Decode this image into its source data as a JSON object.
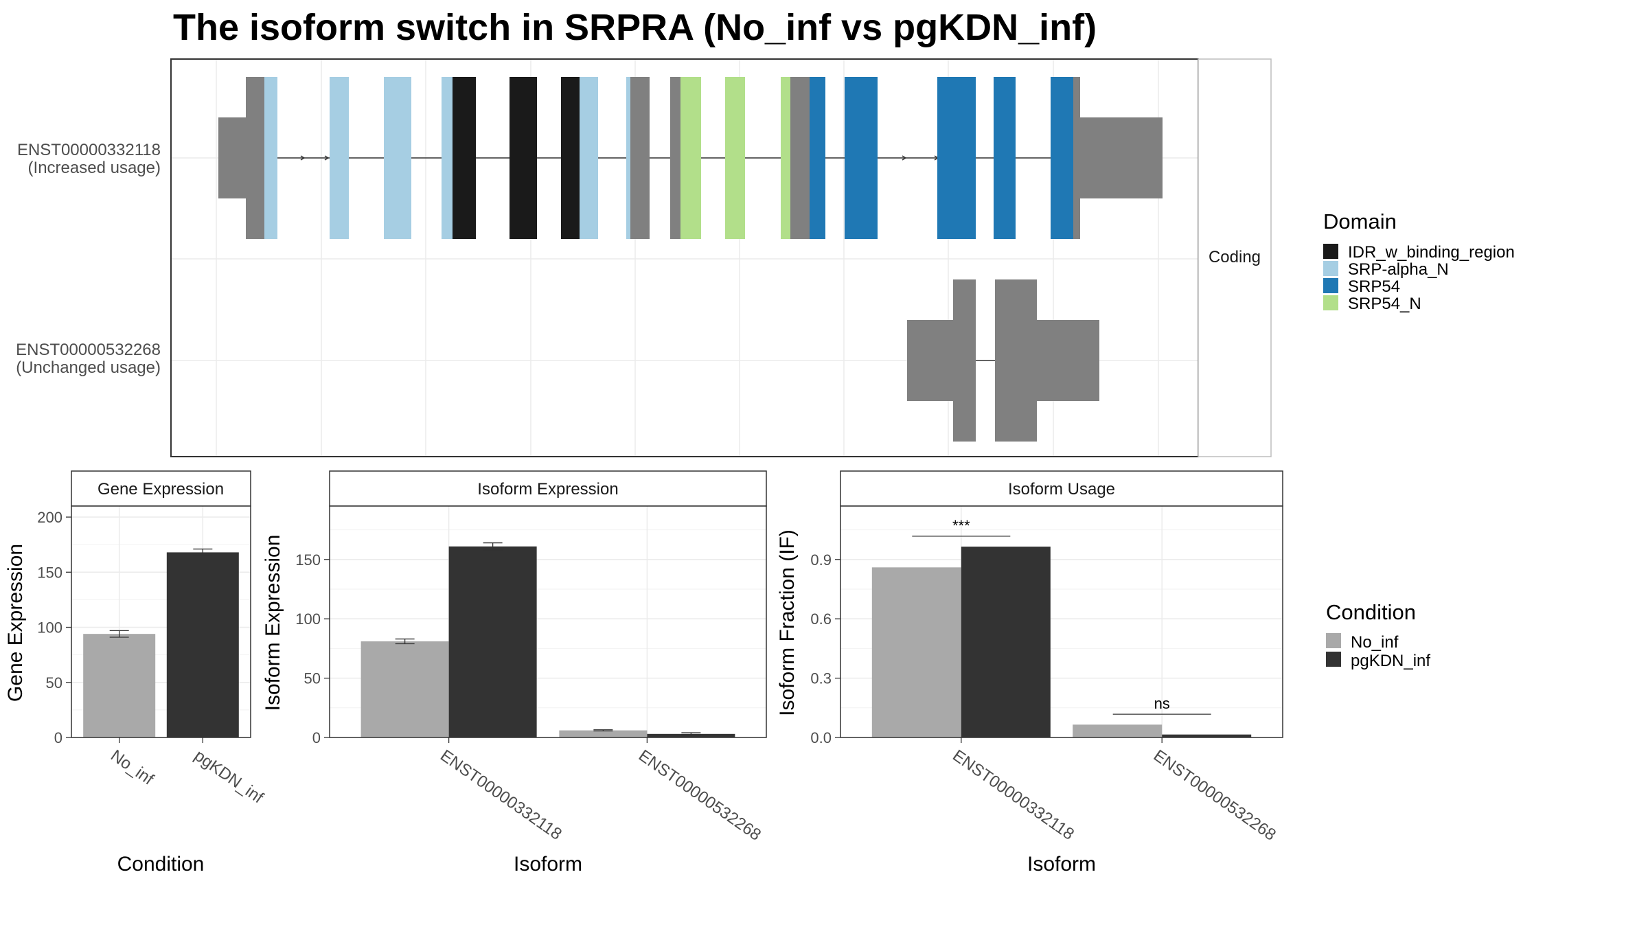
{
  "title": "The isoform switch in SRPRA (No_inf vs pgKDN_inf)",
  "colors": {
    "IDR_w_binding_region": "#1a1a1a",
    "SRP-alpha_N": "#a6cee3",
    "SRP54": "#1f78b4",
    "SRP54_N": "#b2df8a",
    "none": "#808080",
    "No_inf": "#a9a9a9",
    "pgKDN_inf": "#333333"
  },
  "domain_legend": {
    "title": "Domain",
    "items": [
      "IDR_w_binding_region",
      "SRP-alpha_N",
      "SRP54",
      "SRP54_N"
    ]
  },
  "condition_legend": {
    "title": "Condition",
    "items": [
      "No_inf",
      "pgKDN_inf"
    ]
  },
  "transcripts": {
    "strip_label": "Coding",
    "rows": [
      {
        "id": "ENST00000332118",
        "usage": "(Increased usage)"
      },
      {
        "id": "ENST00000532268",
        "usage": "(Unchanged usage)"
      }
    ]
  },
  "chart_data": [
    {
      "type": "bar",
      "panel": "Gene Expression",
      "xlabel": "Condition",
      "ylabel": "Gene Expression",
      "categories": [
        "No_inf",
        "pgKDN_inf"
      ],
      "values": [
        94,
        168
      ],
      "errors": [
        3,
        3
      ],
      "ylim": [
        0,
        210
      ],
      "yticks": [
        0,
        50,
        100,
        150,
        200
      ]
    },
    {
      "type": "bar",
      "panel": "Isoform Expression",
      "xlabel": "Isoform",
      "ylabel": "Isoform Expression",
      "categories": [
        "ENST00000332118",
        "ENST00000532268"
      ],
      "series": [
        {
          "name": "No_inf",
          "values": [
            81,
            6
          ],
          "errors": [
            2,
            0.5
          ]
        },
        {
          "name": "pgKDN_inf",
          "values": [
            161,
            3
          ],
          "errors": [
            3,
            1
          ]
        }
      ],
      "ylim": [
        0,
        195
      ],
      "yticks": [
        0,
        50,
        100,
        150
      ]
    },
    {
      "type": "bar",
      "panel": "Isoform Usage",
      "xlabel": "Isoform",
      "ylabel": "Isoform Fraction (IF)",
      "categories": [
        "ENST00000332118",
        "ENST00000532268"
      ],
      "series": [
        {
          "name": "No_inf",
          "values": [
            0.86,
            0.065
          ]
        },
        {
          "name": "pgKDN_inf",
          "values": [
            0.965,
            0.015
          ]
        }
      ],
      "significance": [
        "***",
        "ns"
      ],
      "ylim": [
        0,
        1.17
      ],
      "yticks": [
        "0.0",
        "0.3",
        "0.6",
        "0.9"
      ]
    }
  ]
}
